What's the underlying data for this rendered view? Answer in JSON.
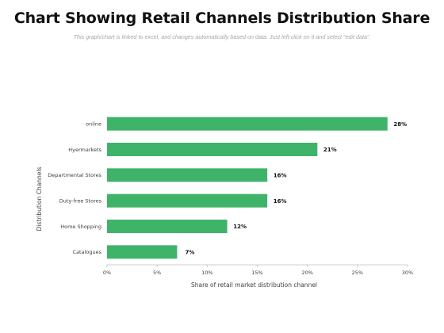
{
  "page": {
    "title": "Chart Showing Retail Channels Distribution Share",
    "subtitle": "This graph/chart is linked to excel, and changes automatically based on data. Just left click on it and select “edit data”."
  },
  "chart_data": {
    "type": "bar",
    "orientation": "horizontal",
    "categories": [
      "online",
      "Hyermarkets",
      "Departmental Stores",
      "Duty-free Stores",
      "Home Shopping",
      "Catalogues"
    ],
    "values": [
      28,
      21,
      16,
      16,
      12,
      7
    ],
    "data_labels": [
      "28%",
      "21%",
      "16%",
      "16%",
      "12%",
      "7%"
    ],
    "xlabel": "Share of retail market distribution channel",
    "ylabel": "Distribution Channels",
    "xlim": [
      0,
      30
    ],
    "xticks": [
      0,
      5,
      10,
      15,
      20,
      25,
      30
    ],
    "xtick_labels": [
      "0%",
      "5%",
      "10%",
      "15%",
      "20%",
      "25%",
      "30%"
    ],
    "grid": false,
    "legend": "none",
    "colors": {
      "bar": "#3fb36a",
      "axis": "#bfbfbf",
      "label_box": "#ffffff"
    }
  }
}
